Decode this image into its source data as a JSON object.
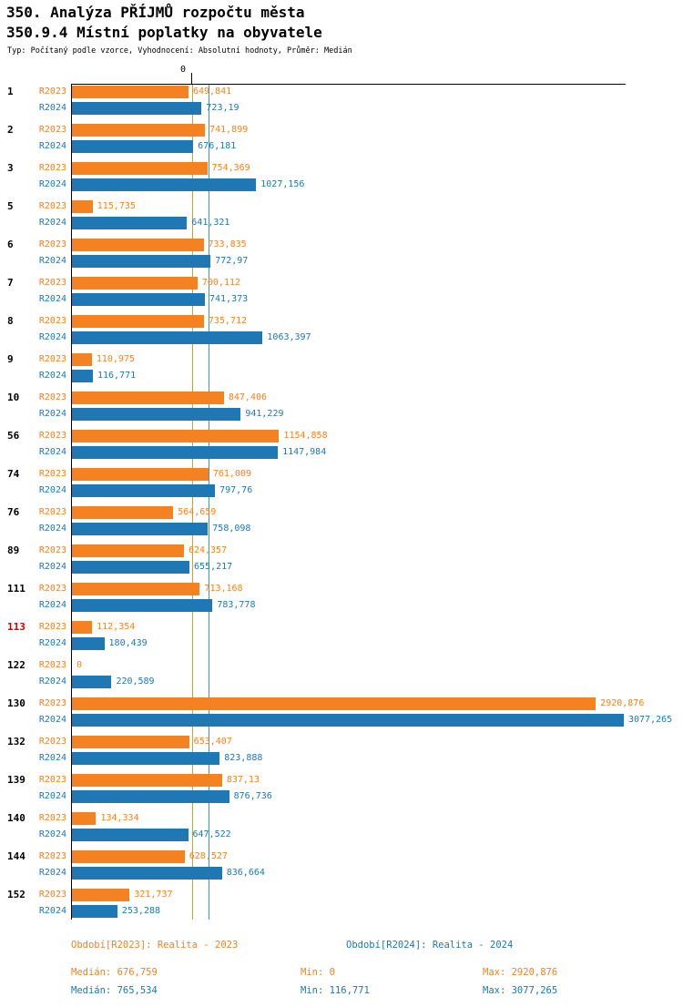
{
  "header": {
    "title1": "350. Analýza PŘÍJMŮ rozpočtu města",
    "title2": "350.9.4 Místní poplatky na obyvatele",
    "meta": "Typ: Počítaný podle vzorce, Vyhodnocení: Absolutní hodnoty, Průměr: Medián"
  },
  "chart_data": {
    "type": "bar",
    "orientation": "horizontal",
    "title": "350.9.4 Místní poplatky na obyvatele",
    "xlim": [
      0,
      3077.265
    ],
    "zero_label": "0",
    "highlight_category": "113",
    "highlight_color": "#CC0000",
    "categories": [
      "1",
      "2",
      "3",
      "5",
      "6",
      "7",
      "8",
      "9",
      "10",
      "56",
      "74",
      "76",
      "89",
      "111",
      "113",
      "122",
      "130",
      "132",
      "139",
      "140",
      "144",
      "152"
    ],
    "series": [
      {
        "name": "R2023",
        "color": "#F58220",
        "values": [
          649.841,
          741.899,
          754.369,
          115.735,
          733.835,
          700.112,
          735.712,
          110.975,
          847.406,
          1154.858,
          761.009,
          564.659,
          624.357,
          713.168,
          112.354,
          0,
          2920.876,
          653.407,
          837.13,
          134.334,
          628.527,
          321.737
        ],
        "labels": [
          "649,841",
          "741,899",
          "754,369",
          "115,735",
          "733,835",
          "700,112",
          "735,712",
          "110,975",
          "847,406",
          "1154,858",
          "761,009",
          "564,659",
          "624,357",
          "713,168",
          "112,354",
          "0",
          "2920,876",
          "653,407",
          "837,13",
          "134,334",
          "628,527",
          "321,737"
        ]
      },
      {
        "name": "R2024",
        "color": "#1F77B4",
        "values": [
          723.19,
          676.181,
          1027.156,
          641.321,
          772.97,
          741.373,
          1063.397,
          116.771,
          941.229,
          1147.984,
          797.76,
          758.098,
          655.217,
          783.778,
          180.439,
          220.589,
          3077.265,
          823.888,
          876.736,
          647.522,
          836.664,
          253.288
        ],
        "labels": [
          "723,19",
          "676,181",
          "1027,156",
          "641,321",
          "772,97",
          "741,373",
          "1063,397",
          "116,771",
          "941,229",
          "1147,984",
          "797,76",
          "758,098",
          "655,217",
          "783,778",
          "180,439",
          "220,589",
          "3077,265",
          "823,888",
          "876,736",
          "647,522",
          "836,664",
          "253,288"
        ]
      }
    ],
    "median_lines": [
      {
        "series": "R2023",
        "value": 676.759,
        "color": "#F0941F"
      },
      {
        "series": "R2024",
        "value": 765.534,
        "color": "#3D99B5"
      }
    ]
  },
  "footer": {
    "legends": [
      {
        "text": "Období[R2023]: Realita - 2023"
      },
      {
        "text": "Období[R2024]: Realita - 2024"
      }
    ],
    "stats_r2023": {
      "median": "Medián: 676,759",
      "min": "Min: 0",
      "max": "Max: 2920,876"
    },
    "stats_r2024": {
      "median": "Medián: 765,534",
      "min": "Min: 116,771",
      "max": "Max: 3077,265"
    }
  }
}
